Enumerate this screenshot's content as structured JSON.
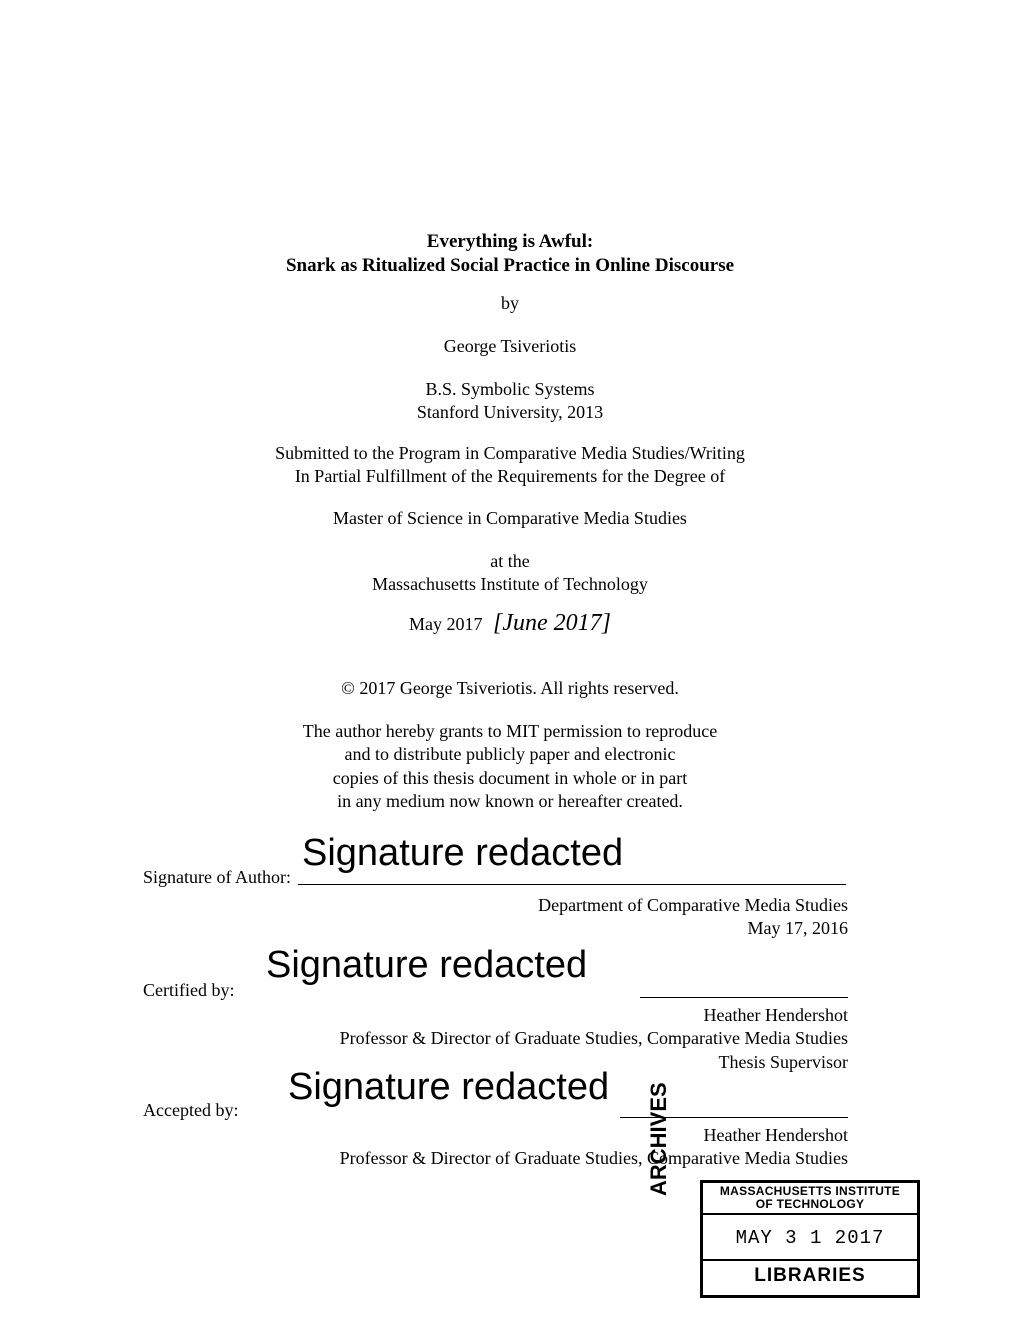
{
  "title_line1": "Everything is Awful:",
  "title_line2": "Snark as Ritualized Social Practice in Online Discourse",
  "by": "by",
  "author": "George Tsiveriotis",
  "prev_degree_line1": "B.S. Symbolic Systems",
  "prev_degree_line2": "Stanford University, 2013",
  "submitted_line1": "Submitted to the Program in Comparative Media Studies/Writing",
  "submitted_line2": "In Partial Fulfillment of the Requirements for the Degree of",
  "master": "Master of Science in Comparative Media Studies",
  "atthe_line1": "at the",
  "atthe_line2": "Massachusetts Institute of Technology",
  "date_printed": "May 2017",
  "date_handwritten": "[June 2017]",
  "copyright": "© 2017 George Tsiveriotis. All rights reserved.",
  "permission_line1": "The author hereby grants to MIT permission to reproduce",
  "permission_line2": "and to distribute publicly paper and electronic",
  "permission_line3": "copies of this thesis document in whole or in part",
  "permission_line4": "in any medium now known or hereafter created.",
  "redacted": "Signature redacted",
  "sig1_label": "Signature of Author:",
  "sig1_dept": "Department of Comparative Media Studies",
  "sig1_date": "May 17, 2016",
  "sig2_label": "Certified by:",
  "sig2_name": "Heather Hendershot",
  "sig2_title": "Professor & Director of Graduate Studies, Comparative Media Studies",
  "sig2_role": "Thesis Supervisor",
  "sig3_label": "Accepted by:",
  "sig3_name": "Heather Hendershot",
  "sig3_title": "Professor & Director of Graduate Studies, Comparative Media Studies",
  "archives": "ARCHIVES",
  "stamp_top1": "MASSACHUSETTS INSTITUTE",
  "stamp_top2": "OF TECHNOLOGY",
  "stamp_date": "MAY 3 1 2017",
  "stamp_libraries": "LIBRARIES"
}
